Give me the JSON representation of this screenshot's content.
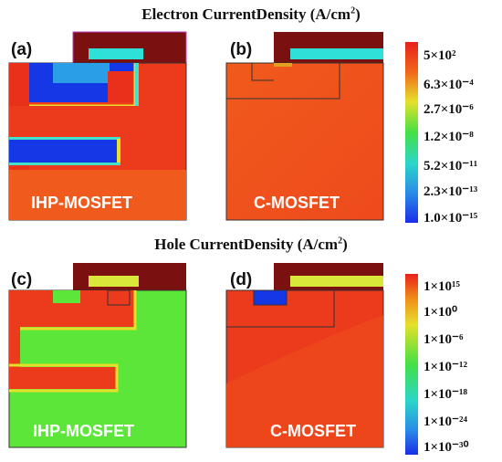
{
  "electron_section": {
    "title": "Electron CurrentDensity (A/cm",
    "title_sup": "2",
    "title_end": ")"
  },
  "hole_section": {
    "title": "Hole CurrentDensity (A/cm",
    "title_sup": "2",
    "title_end": ")"
  },
  "panels": [
    {
      "letter": "(a)",
      "device": "IHP-MOSFET"
    },
    {
      "letter": "(b)",
      "device": "C-MOSFET"
    },
    {
      "letter": "(c)",
      "device": "IHP-MOSFET"
    },
    {
      "letter": "(d)",
      "device": "C-MOSFET"
    }
  ],
  "electron_scale": {
    "labels": [
      "5×10²",
      "6.3×10⁻⁴",
      "2.7×10⁻⁶",
      "1.2×10⁻⁸",
      "5.2×10⁻¹¹",
      "2.3×10⁻¹³",
      "1.0×10⁻¹⁵"
    ]
  },
  "hole_scale": {
    "labels": [
      "1×10¹⁵",
      "1×10⁰",
      "1×10⁻⁶",
      "1×10⁻¹²",
      "1×10⁻¹⁸",
      "1×10⁻²⁴",
      "1×10⁻³⁰"
    ]
  },
  "colors": {
    "gate": "#7a1010",
    "red": "#ec3a1c",
    "orange": "#f0561e",
    "blue": "#1438e6",
    "cyan": "#2fe0d8",
    "green": "#5ce63a",
    "yellow_green": "#d9e63a"
  }
}
